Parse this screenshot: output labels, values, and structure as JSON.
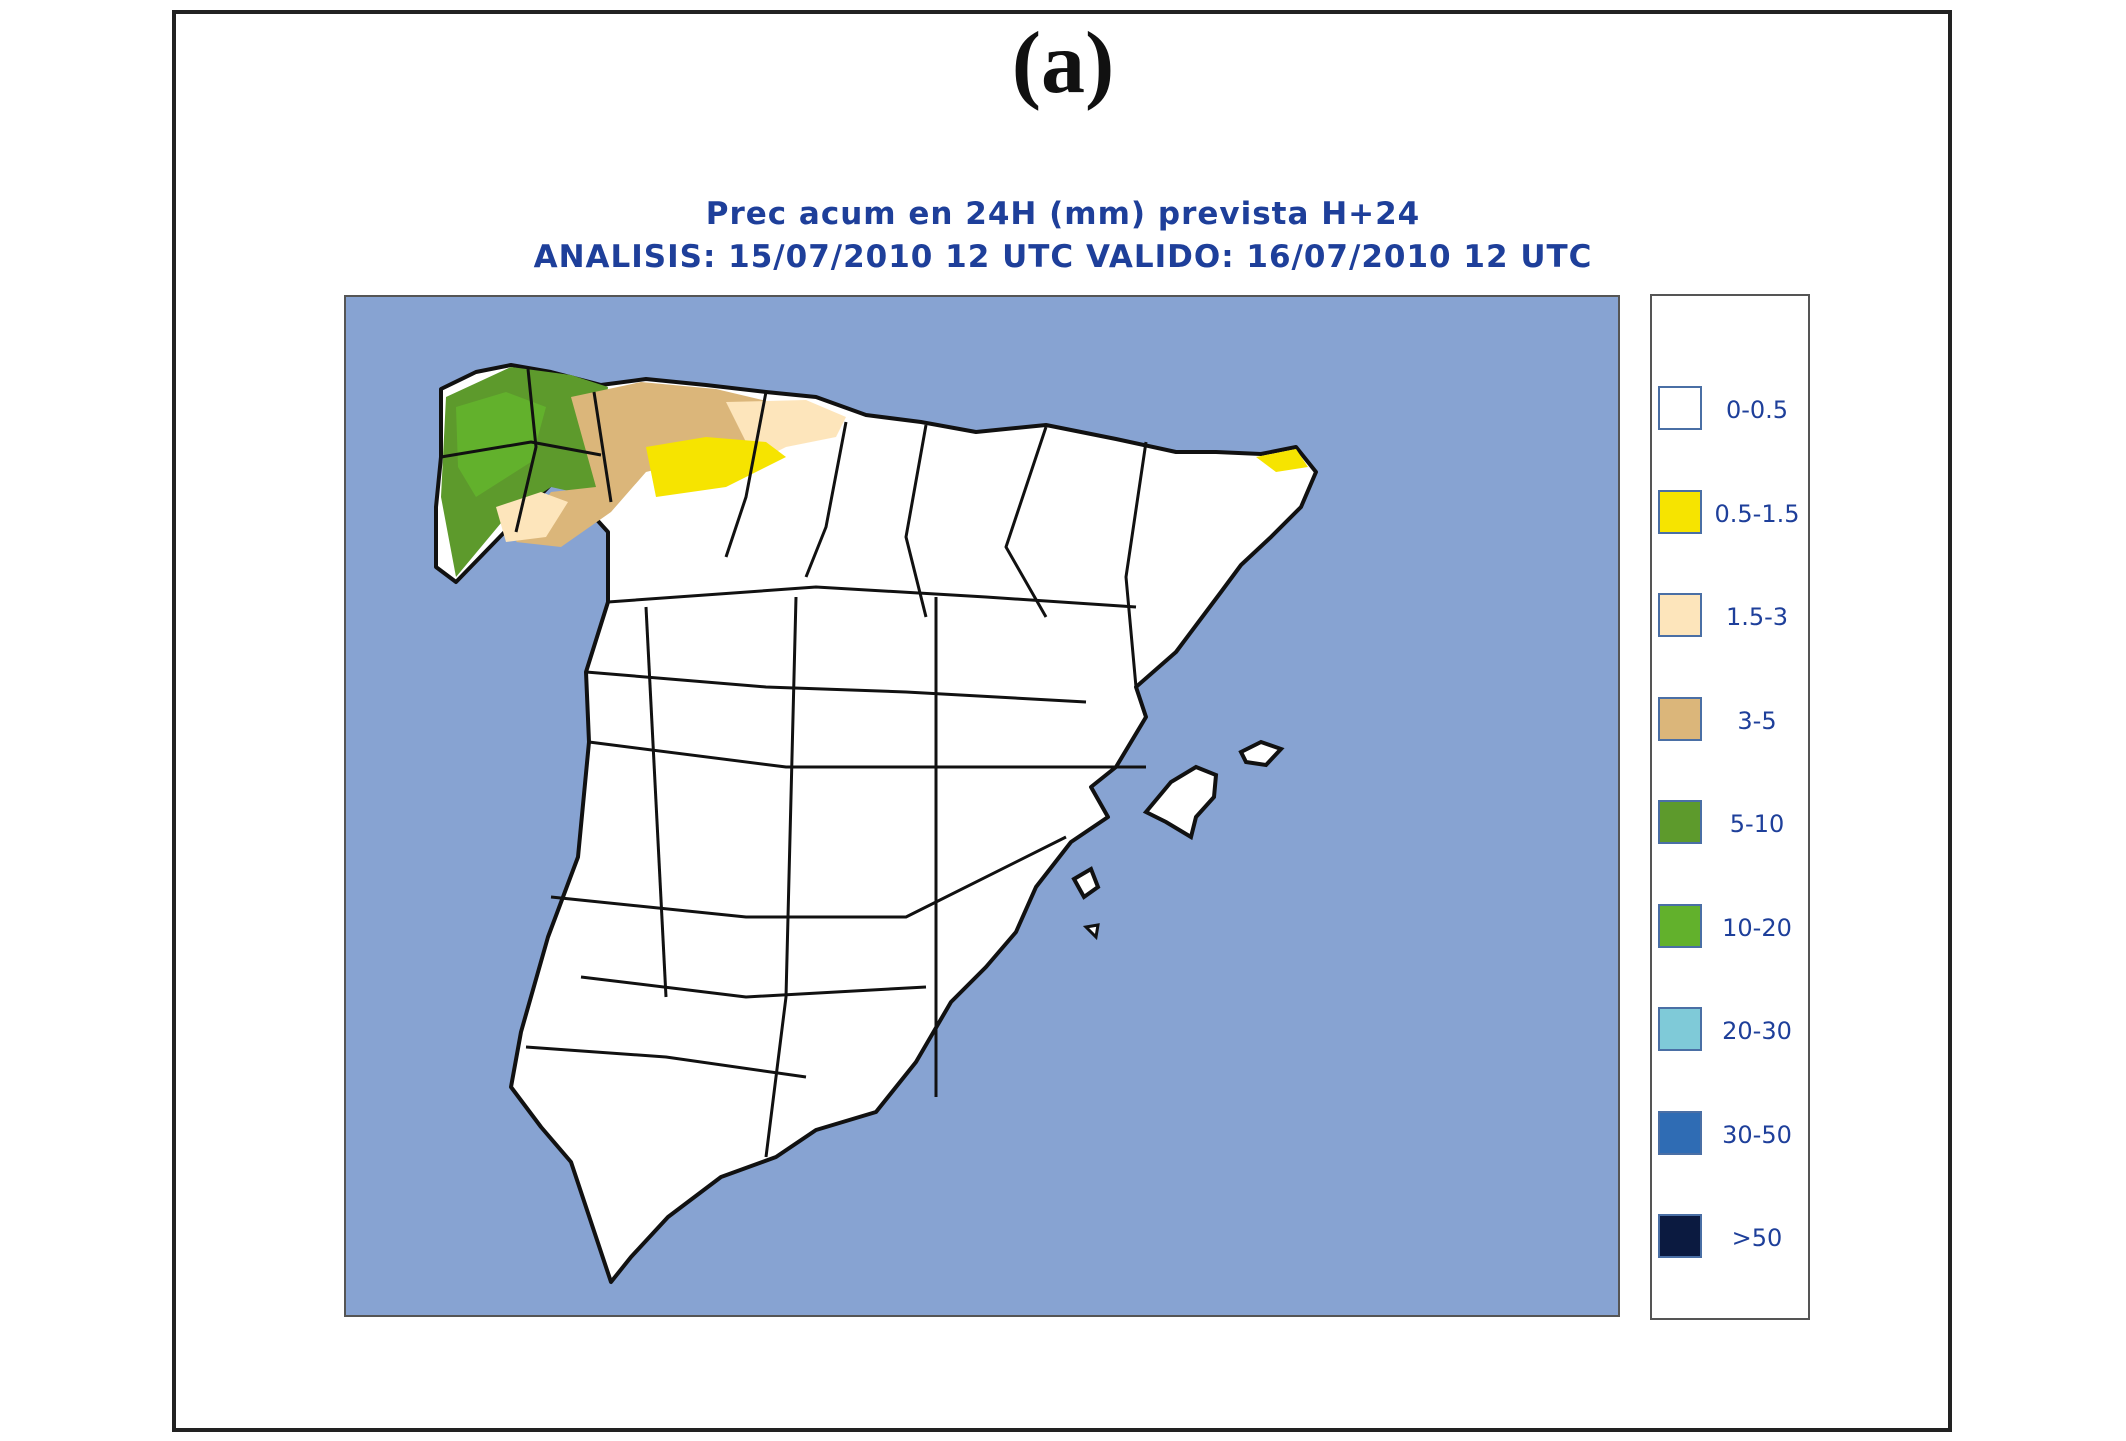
{
  "panel_label": "(a)",
  "title_line1": "Prec acum en 24H (mm) prevista H+24",
  "title_line2": "ANALISIS: 15/07/2010 12 UTC  VALIDO: 16/07/2010 12 UTC",
  "colors": {
    "sea": "#87a3d2",
    "land": "#ffffff",
    "border": "#111111",
    "title": "#1e3f9a"
  },
  "legend": [
    {
      "label": "0-0.5",
      "color": "#ffffff"
    },
    {
      "label": "0.5-1.5",
      "color": "#f6e400"
    },
    {
      "label": "1.5-3",
      "color": "#fde5bb"
    },
    {
      "label": "3-5",
      "color": "#dbb67a"
    },
    {
      "label": "5-10",
      "color": "#5d9a2c"
    },
    {
      "label": "10-20",
      "color": "#62b12c"
    },
    {
      "label": "20-30",
      "color": "#7fcad8"
    },
    {
      "label": "30-50",
      "color": "#2f6cb4"
    },
    {
      "label": ">50",
      "color": "#0b1a40"
    }
  ]
}
